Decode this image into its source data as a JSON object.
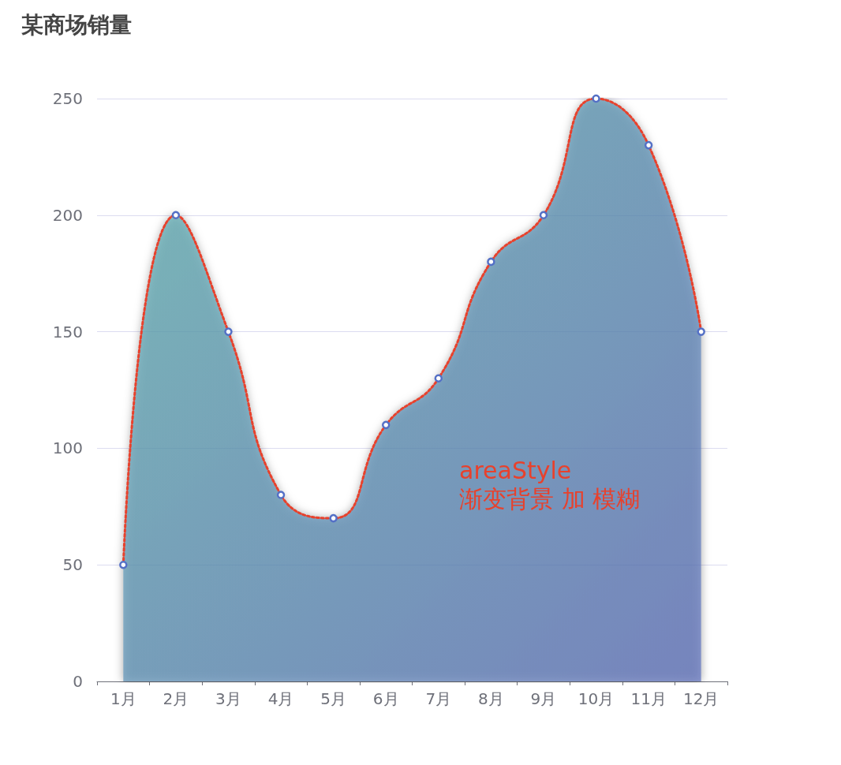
{
  "chart_data": {
    "type": "area",
    "title": "某商场销量",
    "categories": [
      "1月",
      "2月",
      "3月",
      "4月",
      "5月",
      "6月",
      "7月",
      "8月",
      "9月",
      "10月",
      "11月",
      "12月"
    ],
    "values": [
      50,
      200,
      150,
      80,
      70,
      110,
      130,
      180,
      200,
      250,
      230,
      150
    ],
    "color": "#e8412c",
    "ylim": [
      0,
      250
    ],
    "yticks": [
      0,
      50,
      100,
      150,
      200,
      250
    ],
    "grid": "y",
    "marker": "circle",
    "line_style": "dotted",
    "annotations": [
      "areaStyle\n渐变背景 加 模糊"
    ]
  }
}
